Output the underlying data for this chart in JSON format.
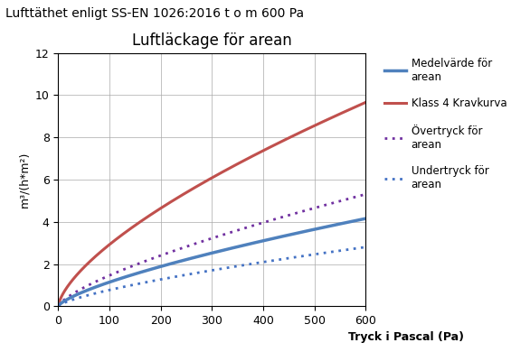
{
  "title_main": "Lufttäthet enligt SS-EN 1026:2016 t o m 600 Pa",
  "chart_title": "Luftläckage för arean",
  "ylabel": "m³/(h*m²)",
  "xlabel": "Tryck i Pascal (Pa)",
  "xlim": [
    0,
    600
  ],
  "ylim": [
    0,
    12
  ],
  "xticks": [
    0,
    100,
    200,
    300,
    400,
    500,
    600
  ],
  "yticks": [
    0,
    2,
    4,
    6,
    8,
    10,
    12
  ],
  "curves": {
    "klass4": {
      "label": "Klass 4 Kravkurva",
      "color": "#c0504d",
      "linestyle": "solid",
      "linewidth": 2.2,
      "coeff": 0.1357,
      "exponent": 0.6667
    },
    "medelvarde": {
      "label": "Medelvärde för\narean",
      "color": "#4f81bd",
      "linestyle": "solid",
      "linewidth": 2.5,
      "coeff": 0.0415,
      "exponent": 0.72
    },
    "overtryck": {
      "label": "Övertryck för\narean",
      "color": "#7030a0",
      "linestyle": "dotted",
      "linewidth": 2.0,
      "coeff": 0.053,
      "exponent": 0.72
    },
    "undertryck": {
      "label": "Undertryck för\narean",
      "color": "#4472c4",
      "linestyle": "dotted",
      "linewidth": 2.0,
      "coeff": 0.028,
      "exponent": 0.72
    }
  },
  "background_color": "#ffffff",
  "plot_bg_color": "#ffffff",
  "grid_color": "#aaaaaa",
  "title_fontsize": 10,
  "chart_title_fontsize": 12,
  "axis_label_fontsize": 9,
  "tick_fontsize": 9,
  "legend_fontsize": 8.5
}
